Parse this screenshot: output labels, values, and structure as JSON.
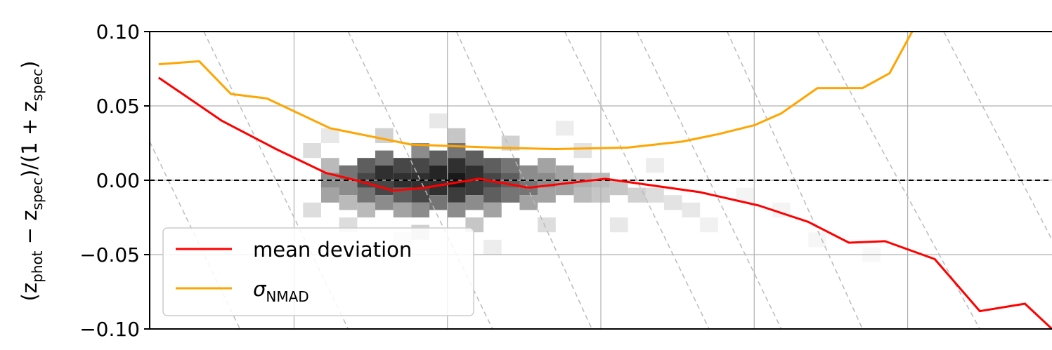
{
  "chart_data": {
    "type": "line",
    "title": "",
    "xlabel": "",
    "ylabel": {
      "prefix": "(z",
      "sub1": "phot",
      "middle": " − z",
      "sub2": "spec",
      "suffix": ")/(1 + z",
      "sub3": "spec",
      "end": ")"
    },
    "ylim": [
      -0.1,
      0.1
    ],
    "xlim": [
      0,
      1
    ],
    "grid": true,
    "yticks": [
      {
        "value": 0.1,
        "label": "0.10"
      },
      {
        "value": 0.05,
        "label": "0.05"
      },
      {
        "value": 0.0,
        "label": "0.00"
      },
      {
        "value": -0.05,
        "label": "−0.05"
      },
      {
        "value": -0.1,
        "label": "−0.10"
      }
    ],
    "xgrid": [
      0.16,
      0.33,
      0.5,
      0.67,
      0.84
    ],
    "reference_line": {
      "y": 0.0,
      "style": "dashed",
      "color": "#000000"
    },
    "diagonal_guides": [
      {
        "x1": 0.0,
        "y1": 0.026,
        "x2": 0.1,
        "y2": -0.1
      },
      {
        "x1": 0.06,
        "y1": 0.1,
        "x2": 0.22,
        "y2": -0.1
      },
      {
        "x1": 0.22,
        "y1": 0.1,
        "x2": 0.38,
        "y2": -0.1
      },
      {
        "x1": 0.34,
        "y1": 0.1,
        "x2": 0.49,
        "y2": -0.1
      },
      {
        "x1": 0.46,
        "y1": 0.1,
        "x2": 0.62,
        "y2": -0.1
      },
      {
        "x1": 0.54,
        "y1": 0.1,
        "x2": 0.7,
        "y2": -0.1
      },
      {
        "x1": 0.64,
        "y1": 0.1,
        "x2": 0.79,
        "y2": -0.1
      },
      {
        "x1": 0.74,
        "y1": 0.1,
        "x2": 0.92,
        "y2": -0.1
      },
      {
        "x1": 0.88,
        "y1": 0.1,
        "x2": 1.0,
        "y2": -0.04
      }
    ],
    "series": [
      {
        "name": "mean deviation",
        "color": "#ff0000",
        "x": [
          0.01,
          0.08,
          0.14,
          0.195,
          0.235,
          0.27,
          0.305,
          0.365,
          0.42,
          0.505,
          0.61,
          0.675,
          0.73,
          0.775,
          0.815,
          0.87,
          0.92,
          0.97,
          1.0
        ],
        "y": [
          0.069,
          0.04,
          0.021,
          0.005,
          -0.001,
          -0.007,
          -0.005,
          0.001,
          -0.005,
          0.001,
          -0.008,
          -0.017,
          -0.028,
          -0.042,
          -0.041,
          -0.053,
          -0.088,
          -0.083,
          -0.1
        ]
      },
      {
        "name": "σNMAD",
        "name_symbol": "σ",
        "name_sub": "NMAD",
        "color": "#ffa500",
        "x": [
          0.01,
          0.055,
          0.09,
          0.13,
          0.2,
          0.29,
          0.38,
          0.45,
          0.53,
          0.59,
          0.63,
          0.67,
          0.7,
          0.74,
          0.79,
          0.82,
          0.845,
          0.865
        ],
        "y": [
          0.078,
          0.08,
          0.058,
          0.055,
          0.035,
          0.024,
          0.022,
          0.021,
          0.022,
          0.026,
          0.031,
          0.037,
          0.045,
          0.062,
          0.062,
          0.072,
          0.1,
          0.11
        ]
      }
    ],
    "legend": {
      "position": "lower-left"
    },
    "histogram": {
      "description_hidden": true,
      "cells": [
        [
          0.2,
          0.01,
          0.3
        ],
        [
          0.2,
          0.0,
          0.5
        ],
        [
          0.2,
          -0.01,
          0.4
        ],
        [
          0.22,
          0.005,
          0.6
        ],
        [
          0.22,
          -0.005,
          0.5
        ],
        [
          0.22,
          -0.015,
          0.3
        ],
        [
          0.24,
          0.01,
          0.7
        ],
        [
          0.24,
          0.0,
          0.8
        ],
        [
          0.24,
          -0.01,
          0.6
        ],
        [
          0.24,
          -0.02,
          0.3
        ],
        [
          0.26,
          0.015,
          0.6
        ],
        [
          0.26,
          0.005,
          0.9
        ],
        [
          0.26,
          -0.005,
          0.8
        ],
        [
          0.26,
          -0.015,
          0.5
        ],
        [
          0.28,
          0.01,
          0.8
        ],
        [
          0.28,
          0.0,
          0.9
        ],
        [
          0.28,
          -0.01,
          0.7
        ],
        [
          0.28,
          -0.02,
          0.4
        ],
        [
          0.3,
          0.02,
          0.5
        ],
        [
          0.3,
          0.01,
          0.8
        ],
        [
          0.3,
          0.0,
          0.9
        ],
        [
          0.3,
          -0.01,
          0.8
        ],
        [
          0.3,
          -0.02,
          0.5
        ],
        [
          0.32,
          0.015,
          0.7
        ],
        [
          0.32,
          0.005,
          0.95
        ],
        [
          0.32,
          -0.005,
          0.9
        ],
        [
          0.32,
          -0.015,
          0.6
        ],
        [
          0.34,
          0.02,
          0.6
        ],
        [
          0.34,
          0.01,
          0.9
        ],
        [
          0.34,
          0.0,
          1.0
        ],
        [
          0.34,
          -0.01,
          0.85
        ],
        [
          0.34,
          -0.02,
          0.5
        ],
        [
          0.36,
          0.015,
          0.7
        ],
        [
          0.36,
          0.005,
          0.9
        ],
        [
          0.36,
          -0.005,
          0.85
        ],
        [
          0.36,
          -0.015,
          0.5
        ],
        [
          0.38,
          0.01,
          0.7
        ],
        [
          0.38,
          0.0,
          0.8
        ],
        [
          0.38,
          -0.01,
          0.7
        ],
        [
          0.38,
          -0.02,
          0.4
        ],
        [
          0.4,
          0.01,
          0.6
        ],
        [
          0.4,
          0.0,
          0.7
        ],
        [
          0.4,
          -0.01,
          0.6
        ],
        [
          0.42,
          0.005,
          0.5
        ],
        [
          0.42,
          -0.005,
          0.6
        ],
        [
          0.42,
          -0.015,
          0.4
        ],
        [
          0.44,
          0.01,
          0.4
        ],
        [
          0.44,
          0.0,
          0.5
        ],
        [
          0.44,
          -0.01,
          0.4
        ],
        [
          0.46,
          0.005,
          0.4
        ],
        [
          0.46,
          -0.005,
          0.4
        ],
        [
          0.48,
          0.0,
          0.35
        ],
        [
          0.48,
          -0.01,
          0.3
        ],
        [
          0.5,
          0.0,
          0.3
        ],
        [
          0.5,
          -0.01,
          0.25
        ],
        [
          0.52,
          -0.005,
          0.25
        ],
        [
          0.54,
          -0.01,
          0.2
        ],
        [
          0.56,
          -0.01,
          0.15
        ],
        [
          0.58,
          -0.015,
          0.12
        ],
        [
          0.6,
          -0.02,
          0.1
        ],
        [
          0.18,
          0.02,
          0.15
        ],
        [
          0.18,
          -0.02,
          0.15
        ],
        [
          0.2,
          0.03,
          0.1
        ],
        [
          0.22,
          -0.03,
          0.15
        ],
        [
          0.26,
          0.03,
          0.2
        ],
        [
          0.3,
          -0.035,
          0.2
        ],
        [
          0.34,
          0.03,
          0.25
        ],
        [
          0.36,
          -0.03,
          0.25
        ],
        [
          0.4,
          0.025,
          0.2
        ],
        [
          0.44,
          -0.03,
          0.15
        ],
        [
          0.48,
          0.02,
          0.12
        ],
        [
          0.52,
          -0.03,
          0.1
        ],
        [
          0.28,
          -0.04,
          0.1
        ],
        [
          0.32,
          0.04,
          0.1
        ],
        [
          0.38,
          -0.045,
          0.08
        ],
        [
          0.46,
          0.035,
          0.08
        ],
        [
          0.56,
          0.01,
          0.08
        ],
        [
          0.62,
          -0.03,
          0.06
        ],
        [
          0.66,
          -0.01,
          0.05
        ],
        [
          0.7,
          -0.02,
          0.05
        ],
        [
          0.74,
          -0.04,
          0.04
        ],
        [
          0.8,
          -0.05,
          0.03
        ]
      ]
    }
  }
}
